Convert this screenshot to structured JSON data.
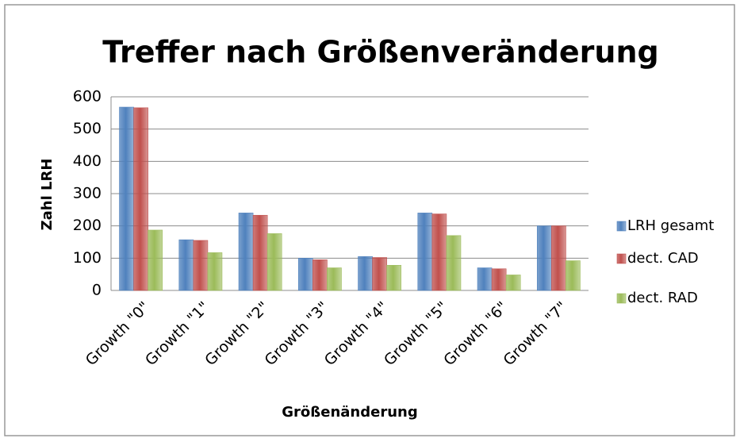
{
  "chart_data": {
    "type": "bar",
    "title": "Treffer nach Größenveränderung",
    "x_label": "Größenänderung",
    "y_label": "Zahl LRH",
    "categories": [
      "Growth \"0\"",
      "Growth \"1\"",
      "Growth \"2\"",
      "Growth \"3\"",
      "Growth \"4\"",
      "Growth \"5\"",
      "Growth \"6\"",
      "Growth \"7\""
    ],
    "series": [
      {
        "name": "LRH gesamt",
        "color": "#4f81bd",
        "values": [
          568,
          157,
          240,
          100,
          105,
          240,
          70,
          200
        ]
      },
      {
        "name": "dect. CAD",
        "color": "#c0504d",
        "values": [
          566,
          155,
          233,
          95,
          102,
          237,
          67,
          200
        ]
      },
      {
        "name": "dect. RAD",
        "color": "#9bbb59",
        "values": [
          187,
          117,
          176,
          70,
          78,
          170,
          48,
          92
        ]
      }
    ],
    "ylim": [
      0,
      600
    ],
    "yticks": [
      0,
      100,
      200,
      300,
      400,
      500,
      600
    ],
    "grid": true,
    "legend": "right"
  }
}
